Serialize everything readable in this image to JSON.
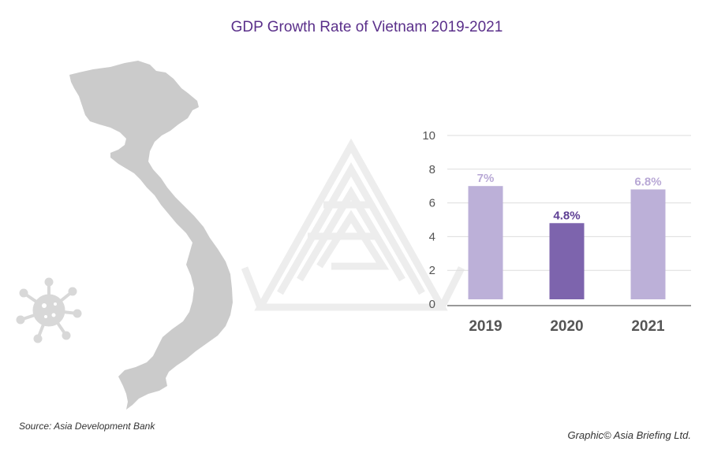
{
  "title": "GDP Growth Rate of Vietnam 2019-2021",
  "source": "Source: Asia Development Bank",
  "credit": "Graphic© Asia Briefing Ltd.",
  "icons": [
    "vietnam-map-icon",
    "virus-icon",
    "asia-briefing-watermark-icon"
  ],
  "colors": {
    "title": "#5a2f8a",
    "bar_light": "#bcb0d8",
    "bar_dark": "#7d64ad",
    "label_light": "#b9a9d6",
    "label_dark": "#5e3f94",
    "map": "#cbcbcb",
    "virus": "#d8d8d8",
    "gridline": "#dddddd",
    "axis": "#999999",
    "tick_text": "#555555",
    "category_text": "#555555"
  },
  "chart_data": {
    "type": "bar",
    "categories": [
      "2019",
      "2020",
      "2021"
    ],
    "values": [
      7,
      4.8,
      6.8
    ],
    "data_labels": [
      "7%",
      "4.8%",
      "6.8%"
    ],
    "highlight_index": 1,
    "ylim": [
      0,
      10
    ],
    "yticks": [
      0,
      2,
      4,
      6,
      8,
      10
    ],
    "title": "",
    "xlabel": "",
    "ylabel": "",
    "grid": true,
    "legend": "none"
  }
}
